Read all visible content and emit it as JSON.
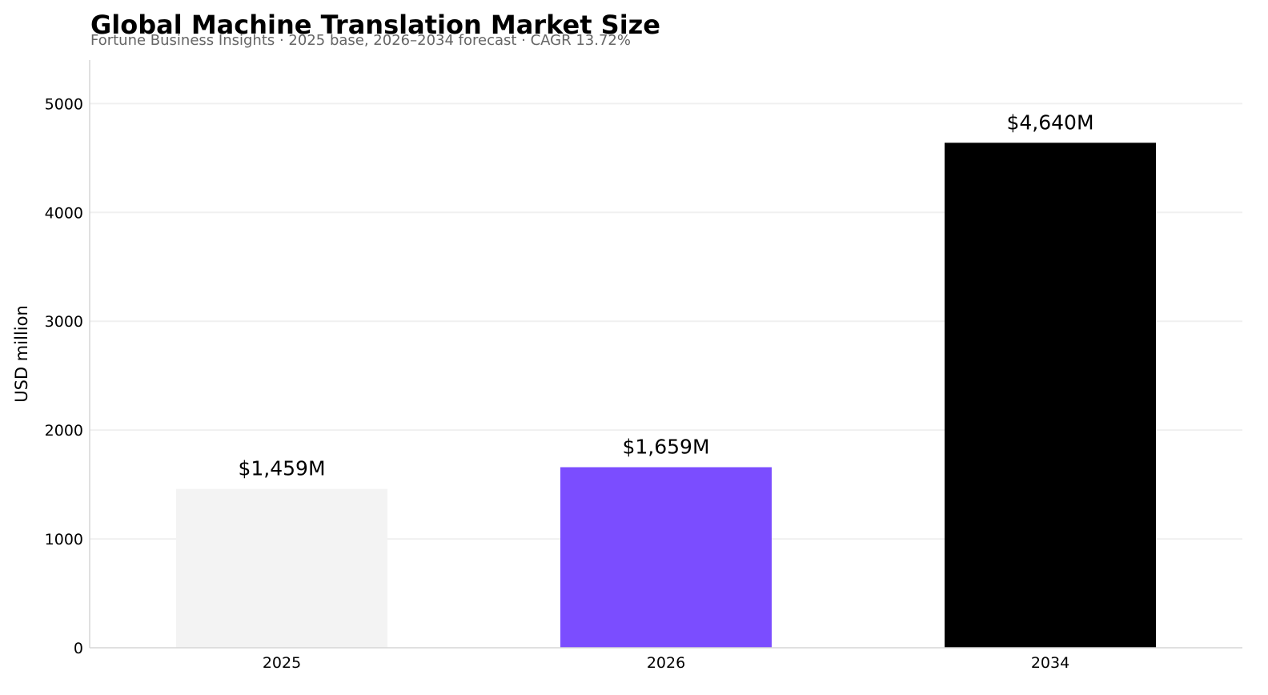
{
  "chart_data": {
    "type": "bar",
    "title": "Global Machine Translation Market Size",
    "subtitle": "Fortune Business Insights · 2025 base, 2026–2034 forecast · CAGR 13.72%",
    "xlabel": "",
    "ylabel": "USD million",
    "categories": [
      "2025",
      "2026",
      "2034"
    ],
    "values": [
      1459,
      1659,
      4640
    ],
    "data_labels": [
      "$1,459M",
      "$1,659M",
      "$4,640M"
    ],
    "bar_colors": [
      "#f3f3f3",
      "#7b4dff",
      "#000000"
    ],
    "ylim": [
      0,
      5400
    ],
    "yticks": [
      0,
      1000,
      2000,
      3000,
      4000,
      5000
    ],
    "ytick_labels": [
      "0",
      "1000",
      "2000",
      "3000",
      "4000",
      "5000"
    ],
    "grid": "horizontal",
    "legend": "none"
  }
}
